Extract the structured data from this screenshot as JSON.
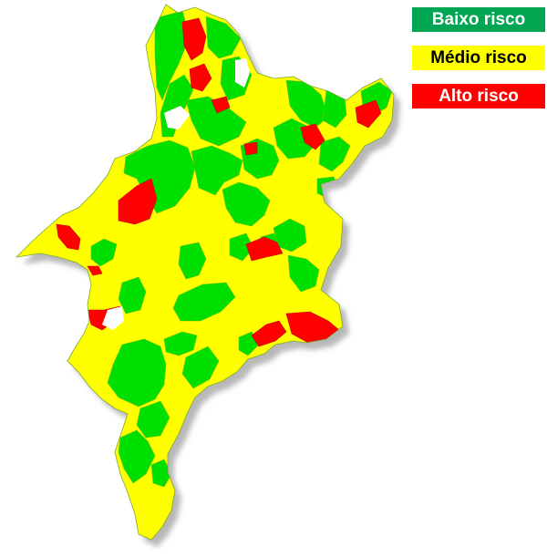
{
  "colors": {
    "background": "#ffffff",
    "low": "#00e000",
    "low_legend": "#00a651",
    "mid": "#ffff00",
    "high": "#ff0000",
    "shadow": "#b8b8b8",
    "border": "#5a9a20"
  },
  "legend": [
    {
      "label": "Baixo risco",
      "color": "#00a651",
      "risk": "low"
    },
    {
      "label": "Médio risco",
      "color": "#ffff00",
      "risk": "mid"
    },
    {
      "label": "Alto risco",
      "color": "#ff0000",
      "risk": "high"
    }
  ]
}
